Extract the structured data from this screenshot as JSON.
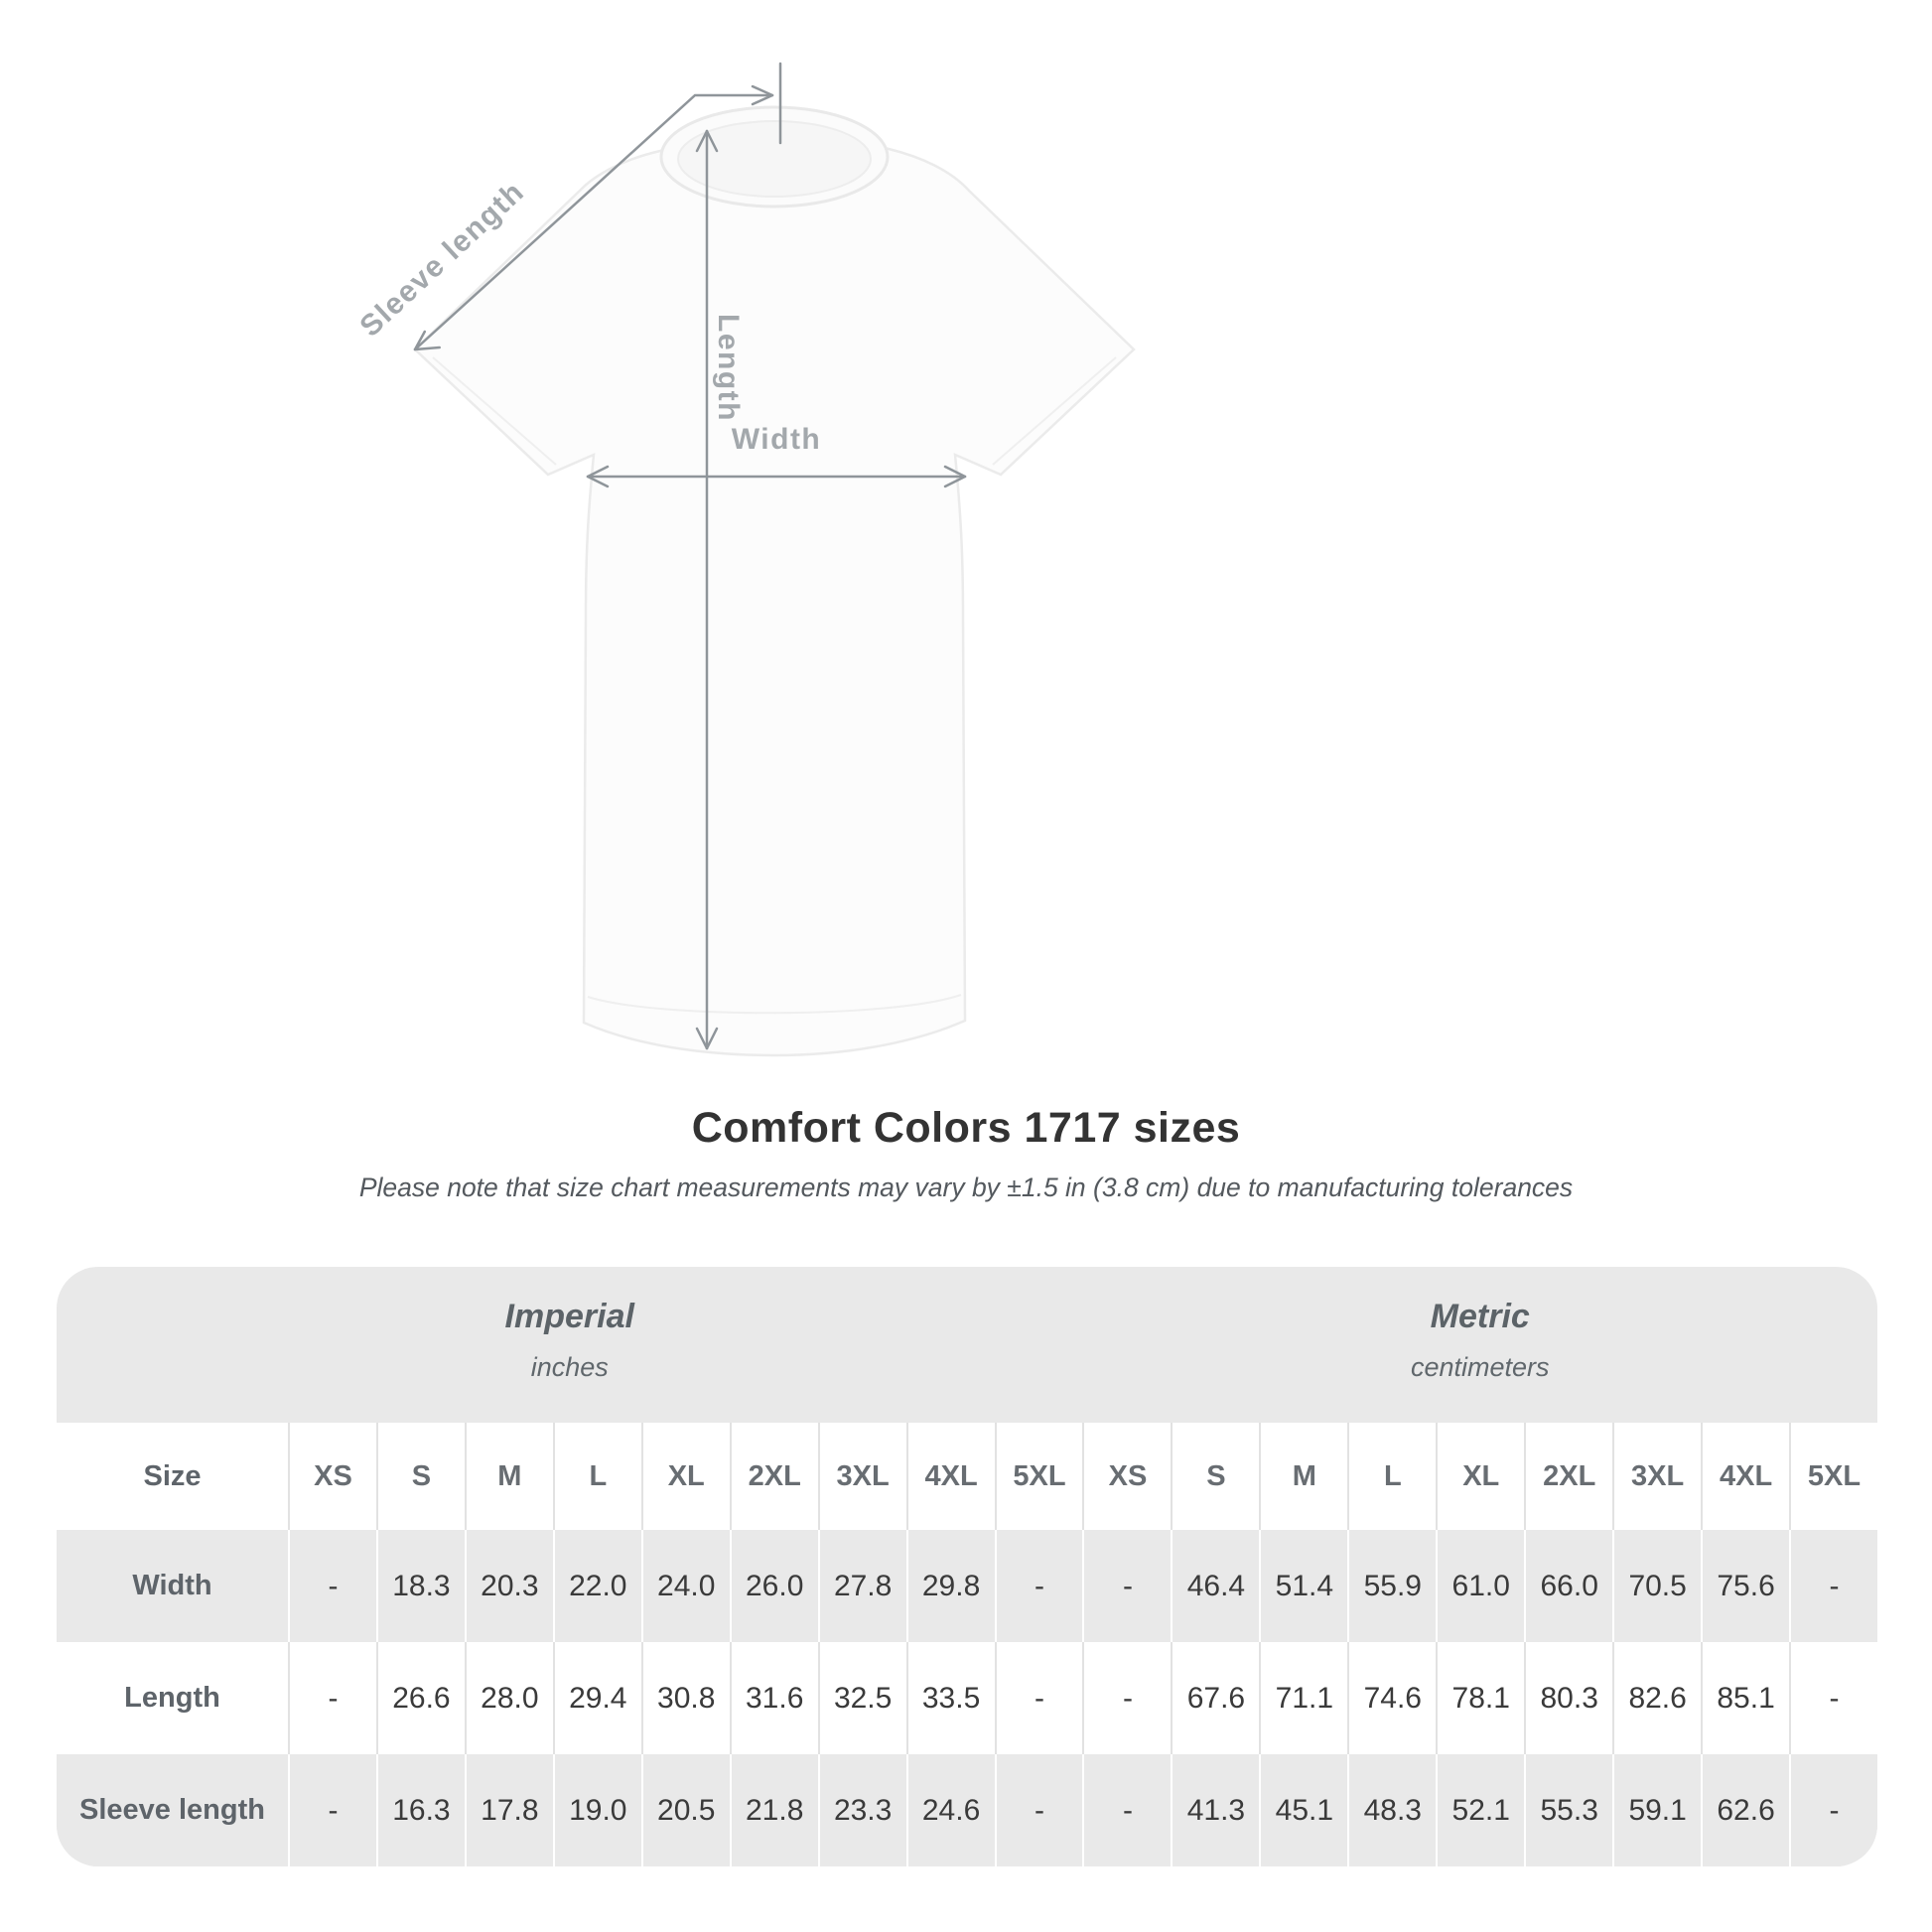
{
  "diagram": {
    "labels": {
      "sleeve_length": "Sleeve length",
      "length": "Length",
      "width": "Width"
    }
  },
  "heading": {
    "title": "Comfort Colors 1717 sizes",
    "subtitle": "Please note that size chart measurements may vary by ±1.5 in (3.8 cm) due to manufacturing tolerances"
  },
  "chart_data": {
    "type": "table",
    "title": "Comfort Colors 1717 sizes",
    "size_header": "Size",
    "groups": [
      {
        "label": "Imperial",
        "unit": "inches"
      },
      {
        "label": "Metric",
        "unit": "centimeters"
      }
    ],
    "sizes": [
      "XS",
      "S",
      "M",
      "L",
      "XL",
      "2XL",
      "3XL",
      "4XL",
      "5XL"
    ],
    "rows": [
      {
        "label": "Width",
        "imperial": [
          "-",
          "18.3",
          "20.3",
          "22.0",
          "24.0",
          "26.0",
          "27.8",
          "29.8",
          "-"
        ],
        "metric": [
          "-",
          "46.4",
          "51.4",
          "55.9",
          "61.0",
          "66.0",
          "70.5",
          "75.6",
          "-"
        ]
      },
      {
        "label": "Length",
        "imperial": [
          "-",
          "26.6",
          "28.0",
          "29.4",
          "30.8",
          "31.6",
          "32.5",
          "33.5",
          "-"
        ],
        "metric": [
          "-",
          "67.6",
          "71.1",
          "74.6",
          "78.1",
          "80.3",
          "82.6",
          "85.1",
          "-"
        ]
      },
      {
        "label": "Sleeve length",
        "imperial": [
          "-",
          "16.3",
          "17.8",
          "19.0",
          "20.5",
          "21.8",
          "23.3",
          "24.6",
          "-"
        ],
        "metric": [
          "-",
          "41.3",
          "45.1",
          "48.3",
          "52.1",
          "55.3",
          "59.1",
          "62.6",
          "-"
        ]
      }
    ]
  },
  "colors": {
    "panel_bg": "#e9e9e9",
    "row_white": "#ffffff",
    "value_text": "#3a3a3a",
    "label_text": "#5e646a",
    "arrow": "#8f959a",
    "title_text": "#333333"
  }
}
